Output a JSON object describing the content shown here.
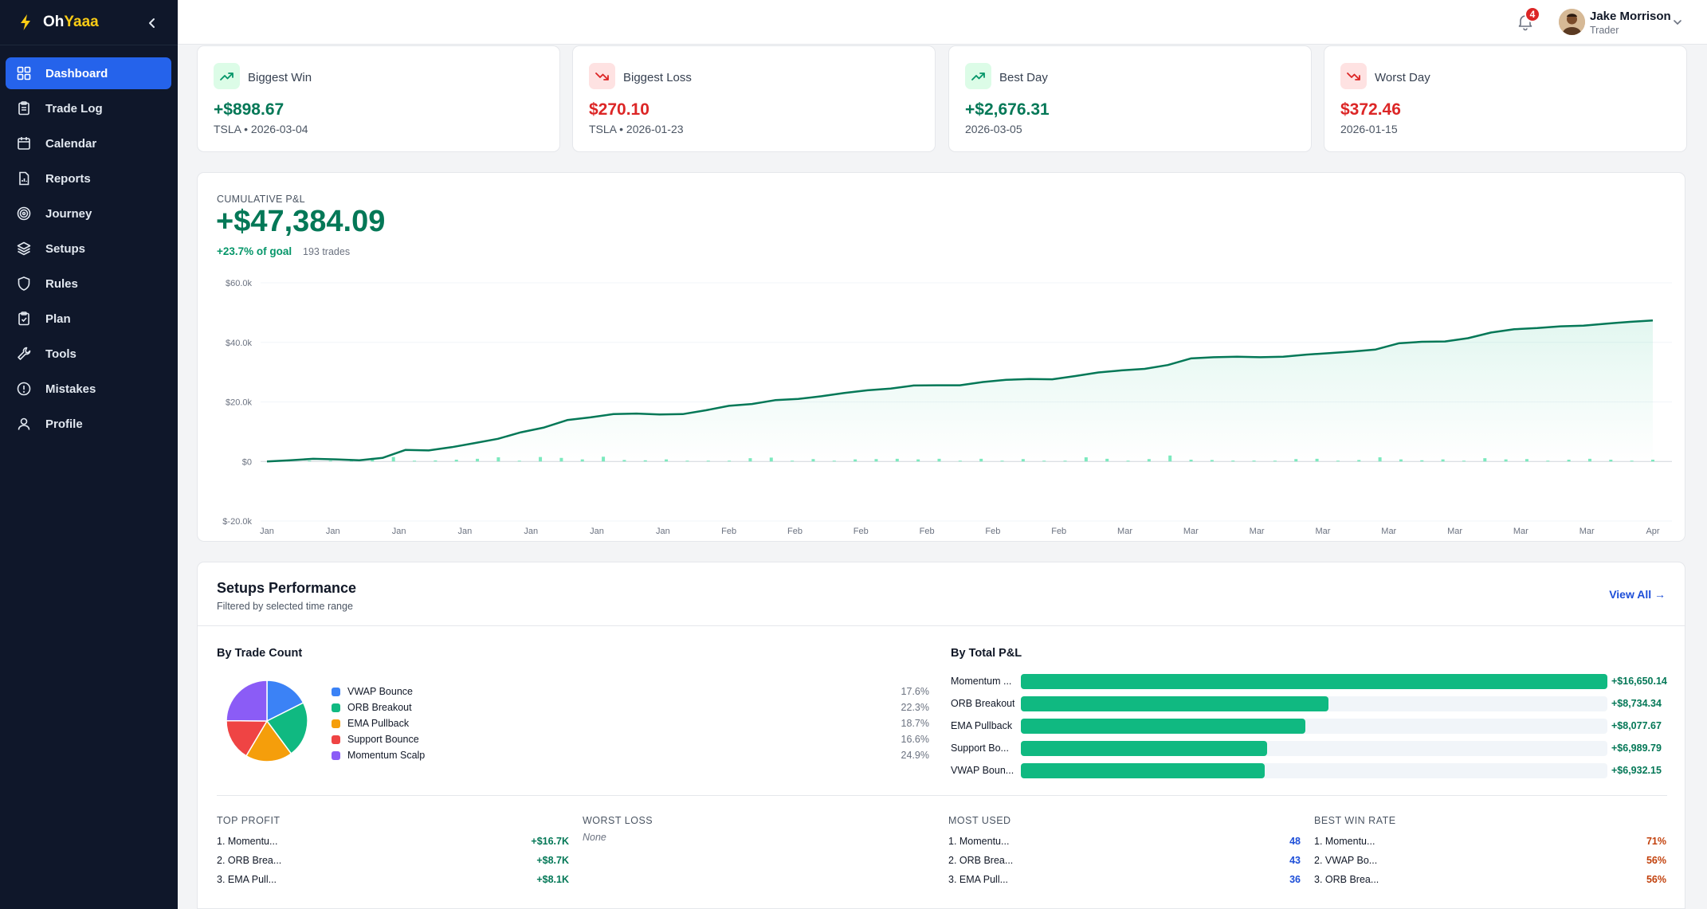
{
  "brand": {
    "name_a": "Oh",
    "name_b": "Yaaa"
  },
  "sidebar": {
    "items": [
      {
        "label": "Dashboard",
        "icon": "grid-icon",
        "active": true
      },
      {
        "label": "Trade Log",
        "icon": "clipboard-icon"
      },
      {
        "label": "Calendar",
        "icon": "calendar-icon"
      },
      {
        "label": "Reports",
        "icon": "report-icon"
      },
      {
        "label": "Journey",
        "icon": "target-icon"
      },
      {
        "label": "Setups",
        "icon": "layers-icon"
      },
      {
        "label": "Rules",
        "icon": "shield-icon"
      },
      {
        "label": "Plan",
        "icon": "clipboard-check-icon"
      },
      {
        "label": "Tools",
        "icon": "wrench-icon"
      },
      {
        "label": "Mistakes",
        "icon": "alert-circle-icon"
      },
      {
        "label": "Profile",
        "icon": "user-icon"
      }
    ]
  },
  "topbar": {
    "notifications": "4",
    "user_name": "Jake Morrison",
    "user_role": "Trader"
  },
  "stats": [
    {
      "label": "Biggest Win",
      "value": "+$898.67",
      "sub": "TSLA • 2026-03-04",
      "tone": "green"
    },
    {
      "label": "Biggest Loss",
      "value": "$270.10",
      "sub": "TSLA • 2026-01-23",
      "tone": "red"
    },
    {
      "label": "Best Day",
      "value": "+$2,676.31",
      "sub": "2026-03-05",
      "tone": "green"
    },
    {
      "label": "Worst Day",
      "value": "$372.46",
      "sub": "2026-01-15",
      "tone": "red"
    }
  ],
  "cumulative": {
    "label": "CUMULATIVE P&L",
    "value": "+$47,384.09",
    "goal": "+23.7% of goal",
    "trades": "193 trades"
  },
  "chart_data": {
    "type": "area",
    "title": "CUMULATIVE P&L",
    "y_ticks": [
      "$60.0k",
      "$40.0k",
      "$20.0k",
      "$0",
      "$-20.0k"
    ],
    "ylim": [
      -20000,
      60000
    ],
    "x_labels": [
      "Jan",
      "Jan",
      "Jan",
      "Jan",
      "Jan",
      "Jan",
      "Jan",
      "Feb",
      "Feb",
      "Feb",
      "Feb",
      "Feb",
      "Feb",
      "Mar",
      "Mar",
      "Mar",
      "Mar",
      "Mar",
      "Mar",
      "Mar",
      "Mar",
      "Apr"
    ],
    "series": [
      {
        "values": [
          0,
          400,
          900,
          700,
          400,
          1200,
          3900,
          3700,
          4800,
          6200,
          7600,
          9800,
          11400,
          13900,
          14800,
          15900,
          16100,
          15800,
          15900,
          17200,
          18700,
          19300,
          20600,
          21000,
          21900,
          23000,
          23900,
          24500,
          25500,
          25600,
          25600,
          26700,
          27400,
          27700,
          27600,
          28700,
          29900,
          30600,
          31100,
          32400,
          34600,
          35000,
          35200,
          35000,
          35200,
          35900,
          36400,
          36900,
          37600,
          39700,
          40200,
          40300,
          41400,
          43300,
          44400,
          44800,
          45400,
          45600,
          46300,
          46900,
          47384
        ]
      }
    ],
    "daily_bars": [
      0,
      200,
      0,
      0,
      1200,
      1500,
      0,
      350,
      600,
      900,
      1400,
      0,
      1500,
      1200,
      700,
      1600,
      500,
      400,
      700,
      0,
      0,
      0,
      1100,
      1300,
      0,
      800,
      0,
      700,
      800,
      900,
      700,
      900,
      0,
      900,
      0,
      800,
      0,
      0,
      1400,
      900,
      0,
      800,
      2000,
      600,
      500,
      300,
      300,
      200,
      800,
      900,
      0,
      500,
      1400,
      700,
      400,
      700,
      0,
      1100,
      700,
      800,
      0,
      600,
      900,
      600,
      0,
      600
    ]
  },
  "setups": {
    "title": "Setups Performance",
    "subtitle": "Filtered by selected time range",
    "view_all": "View All →",
    "by_count_title": "By Trade Count",
    "by_count": [
      {
        "name": "VWAP Bounce",
        "pct": "17.6%",
        "value": 17.6,
        "color": "#3b82f6"
      },
      {
        "name": "ORB Breakout",
        "pct": "22.3%",
        "value": 22.3,
        "color": "#10b981"
      },
      {
        "name": "EMA Pullback",
        "pct": "18.7%",
        "value": 18.7,
        "color": "#f59e0b"
      },
      {
        "name": "Support Bounce",
        "pct": "16.6%",
        "value": 16.6,
        "color": "#ef4444"
      },
      {
        "name": "Momentum Scalp",
        "pct": "24.9%",
        "value": 24.9,
        "color": "#8b5cf6"
      }
    ],
    "by_pnl_title": "By Total P&L",
    "by_pnl": [
      {
        "name": "Momentum ...",
        "value_text": "+$16,650.14",
        "value": 16650.14
      },
      {
        "name": "ORB Breakout",
        "value_text": "+$8,734.34",
        "value": 8734.34
      },
      {
        "name": "EMA Pullback",
        "value_text": "+$8,077.67",
        "value": 8077.67
      },
      {
        "name": "Support Bo...",
        "value_text": "+$6,989.79",
        "value": 6989.79
      },
      {
        "name": "VWAP Boun...",
        "value_text": "+$6,932.15",
        "value": 6932.15
      }
    ],
    "top_profit": {
      "title": "TOP PROFIT",
      "rows": [
        {
          "name": "1. Momentu...",
          "value": "+$16.7K"
        },
        {
          "name": "2. ORB Brea...",
          "value": "+$8.7K"
        },
        {
          "name": "3. EMA Pull...",
          "value": "+$8.1K"
        }
      ]
    },
    "worst_loss": {
      "title": "WORST LOSS",
      "none": "None"
    },
    "most_used": {
      "title": "MOST USED",
      "rows": [
        {
          "name": "1. Momentu...",
          "value": "48"
        },
        {
          "name": "2. ORB Brea...",
          "value": "43"
        },
        {
          "name": "3. EMA Pull...",
          "value": "36"
        }
      ]
    },
    "best_win_rate": {
      "title": "BEST WIN RATE",
      "rows": [
        {
          "name": "1. Momentu...",
          "value": "71%"
        },
        {
          "name": "2. VWAP Bo...",
          "value": "56%"
        },
        {
          "name": "3. ORB Brea...",
          "value": "56%"
        }
      ]
    }
  }
}
